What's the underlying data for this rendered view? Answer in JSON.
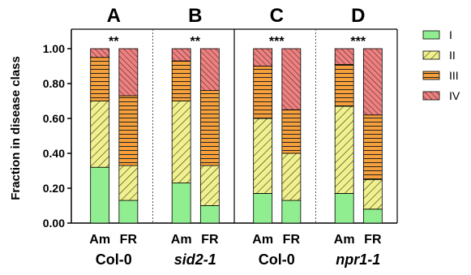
{
  "chart_data": {
    "type": "bar",
    "stacked": true,
    "ylabel": "Fraction in disease class",
    "ylim": [
      0,
      1.0
    ],
    "yticks": [
      "0.00",
      "0.20",
      "0.40",
      "0.60",
      "0.80",
      "1.00"
    ],
    "grid": false,
    "legend_placement": "right",
    "panels": [
      {
        "letter": "A",
        "genotype": "Col-0",
        "genotype_italic": false,
        "significance": "**"
      },
      {
        "letter": "B",
        "genotype": "sid2-1",
        "genotype_italic": true,
        "significance": "**"
      },
      {
        "letter": "C",
        "genotype": "Col-0",
        "genotype_italic": false,
        "significance": "***"
      },
      {
        "letter": "D",
        "genotype": "npr1-1",
        "genotype_italic": true,
        "significance": "***"
      }
    ],
    "bar_labels": [
      "Am",
      "FR",
      "Am",
      "FR",
      "Am",
      "FR",
      "Am",
      "FR"
    ],
    "series": [
      {
        "name": "I",
        "color": "#90ee90",
        "pattern": "solid",
        "values": [
          0.32,
          0.13,
          0.23,
          0.1,
          0.17,
          0.13,
          0.17,
          0.08
        ]
      },
      {
        "name": "II",
        "color": "#f0f08c",
        "pattern": "diagonal",
        "values": [
          0.38,
          0.2,
          0.47,
          0.23,
          0.43,
          0.27,
          0.5,
          0.17
        ]
      },
      {
        "name": "III",
        "color": "#f6a03c",
        "pattern": "horizontal",
        "values": [
          0.25,
          0.4,
          0.23,
          0.43,
          0.3,
          0.25,
          0.24,
          0.37
        ]
      },
      {
        "name": "IV",
        "color": "#f08080",
        "pattern": "diagonal-dense",
        "values": [
          0.05,
          0.27,
          0.07,
          0.24,
          0.1,
          0.35,
          0.09,
          0.38
        ]
      }
    ]
  }
}
